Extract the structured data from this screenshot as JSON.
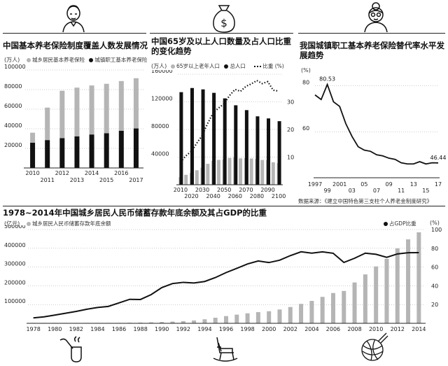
{
  "panel1": {
    "title": "中国基本养老保险制度覆盖人数发展情况",
    "unit": "(万人)",
    "legend": [
      "城乡居民基本养老保险",
      "城镇职工基本养老保险"
    ]
  },
  "panel2": {
    "title": "中国65岁及以上人口数量及占人口比重的变化趋势",
    "unit_left": "(万人)",
    "legend": [
      "65岁以上老年人口",
      "总人口",
      "比重 (%)"
    ]
  },
  "panel3": {
    "title": "我国城镇职工基本养老保险替代率水平发展趋势",
    "unit": "(%)",
    "source": "数据来源：《建立中国特色第三支柱个人养老金制度研究》"
  },
  "panel4": {
    "title": "1978~2014年中国城乡居民人民币储蓄存款年底余额及其占GDP的比重",
    "unit_left": "(亿元)",
    "unit_right": "(%)",
    "legend_left": "城乡居民人民币储蓄存款年底余额",
    "legend_right": "占GDP比重"
  },
  "colors": {
    "gray": "#b5b5b5",
    "black": "#111111"
  },
  "chart_data": [
    {
      "type": "bar",
      "stacked": true,
      "categories": [
        "2010",
        "2011",
        "2012",
        "2013",
        "2014",
        "2015",
        "2016",
        "2017"
      ],
      "series": [
        {
          "name": "城镇职工基本养老保险",
          "values": [
            25700,
            28400,
            30400,
            32200,
            34100,
            35400,
            37900,
            40300
          ]
        },
        {
          "name": "城乡居民基本养老保险",
          "values": [
            10300,
            33200,
            48400,
            49800,
            50100,
            50500,
            50800,
            51300
          ]
        }
      ],
      "ylim": [
        0,
        100000
      ],
      "yticks": [
        20000,
        40000,
        60000,
        80000,
        100000
      ],
      "xticks_top": [
        "2010",
        "2012",
        "2014",
        "2016"
      ],
      "xticks_bottom": [
        "2011",
        "2013",
        "2015",
        "2017"
      ]
    },
    {
      "type": "bar+line",
      "categories": [
        "2010",
        "2015",
        "2020",
        "2025",
        "2030",
        "2035",
        "2040",
        "2045",
        "2050",
        "2055",
        "2060",
        "2065",
        "2070",
        "2075",
        "2080",
        "2085",
        "2090",
        "2095",
        "2100"
      ],
      "series": [
        {
          "name": "65岁以上老年人口",
          "values": [
            11000,
            14400,
            17000,
            21000,
            24700,
            30300,
            34600,
            36000,
            36600,
            38800,
            39700,
            38200,
            38500,
            38000,
            37300,
            35900,
            35800,
            32500,
            31200
          ]
        },
        {
          "name": "总人口",
          "values": [
            134000,
            137500,
            140000,
            139500,
            138000,
            136000,
            133000,
            129500,
            125000,
            120000,
            115000,
            113000,
            108000,
            104000,
            99000,
            98000,
            96000,
            95000,
            92000
          ]
        },
        {
          "name": "比重 (%)",
          "axis": "right",
          "values": [
            8.2,
            10.5,
            12.1,
            15.1,
            17.9,
            22.3,
            26.0,
            27.8,
            29.3,
            32.3,
            34.5,
            33.8,
            35.6,
            36.5,
            37.7,
            36.6,
            37.3,
            34.2,
            33.9
          ]
        }
      ],
      "ylim_left": [
        0,
        160000
      ],
      "yticks_left": [
        40000,
        80000,
        120000,
        160000
      ],
      "ylim_right": [
        0,
        40
      ],
      "yticks_right": [
        10,
        20,
        30
      ],
      "xticks_top": [
        "2010",
        "2030",
        "2050",
        "2070",
        "2090"
      ],
      "xticks_bottom": [
        "2020",
        "2040",
        "2060",
        "2080",
        "2100"
      ]
    },
    {
      "type": "line",
      "x": [
        1997,
        1998,
        1999,
        2000,
        2001,
        2002,
        2003,
        2004,
        2005,
        2006,
        2007,
        2008,
        2009,
        2010,
        2011,
        2012,
        2013,
        2014,
        2015,
        2016,
        2017
      ],
      "values": [
        76.0,
        74.0,
        80.53,
        73.0,
        71.0,
        63.5,
        58.0,
        53.5,
        52.0,
        51.5,
        50.0,
        49.5,
        48.5,
        48.0,
        46.5,
        46.0,
        46.0,
        47.0,
        46.0,
        46.5,
        46.44
      ],
      "labels": {
        "1999": "80.53",
        "2017": "46.44"
      },
      "ylim": [
        40,
        85
      ],
      "yticks": [
        60,
        80
      ],
      "xticks_top": [
        "1997",
        "2001",
        "05",
        "09",
        "13",
        "17"
      ],
      "xticks_bottom": [
        "99",
        "03",
        "07",
        "11",
        "15"
      ]
    },
    {
      "type": "bar+line",
      "x": [
        1978,
        1979,
        1980,
        1981,
        1982,
        1983,
        1984,
        1985,
        1986,
        1987,
        1988,
        1989,
        1990,
        1991,
        1992,
        1993,
        1994,
        1995,
        1996,
        1997,
        1998,
        1999,
        2000,
        2001,
        2002,
        2003,
        2004,
        2005,
        2006,
        2007,
        2008,
        2009,
        2010,
        2011,
        2012,
        2013,
        2014
      ],
      "series": [
        {
          "name": "城乡居民人民币储蓄存款年底余额",
          "values": [
            211,
            281,
            400,
            523,
            675,
            893,
            1215,
            1623,
            2238,
            3081,
            3822,
            5196,
            7120,
            9242,
            11759,
            15204,
            21519,
            29662,
            38521,
            46280,
            53408,
            59622,
            64332,
            73762,
            86911,
            103618,
            119555,
            141051,
            161587,
            172534,
            217885,
            260772,
            303302,
            343636,
            399551,
            447602,
            485261
          ]
        },
        {
          "name": "占GDP比重",
          "axis": "right",
          "values": [
            5.8,
            6.9,
            8.8,
            10.7,
            12.7,
            15.0,
            16.9,
            18.0,
            21.8,
            25.6,
            25.4,
            30.6,
            38.1,
            42.4,
            43.7,
            43.0,
            44.6,
            48.8,
            54.1,
            58.6,
            63.3,
            66.5,
            64.8,
            67.3,
            72.2,
            76.3,
            74.8,
            76.2,
            74.7,
            64.9,
            69.4,
            74.8,
            73.6,
            70.4,
            74.0,
            75.3,
            75.4
          ]
        }
      ],
      "ylim_left": [
        0,
        500000
      ],
      "yticks_left": [
        100000,
        200000,
        300000,
        400000,
        500000
      ],
      "ylim_right": [
        0,
        100
      ],
      "yticks_right": [
        20,
        40,
        60,
        80,
        100
      ],
      "xticks": [
        "1978",
        "1980",
        "1982",
        "1984",
        "1986",
        "1988",
        "1990",
        "1992",
        "1994",
        "1996",
        "1998",
        "2000",
        "2002",
        "2004",
        "2006",
        "2008",
        "2010",
        "2012",
        "2014"
      ]
    }
  ]
}
